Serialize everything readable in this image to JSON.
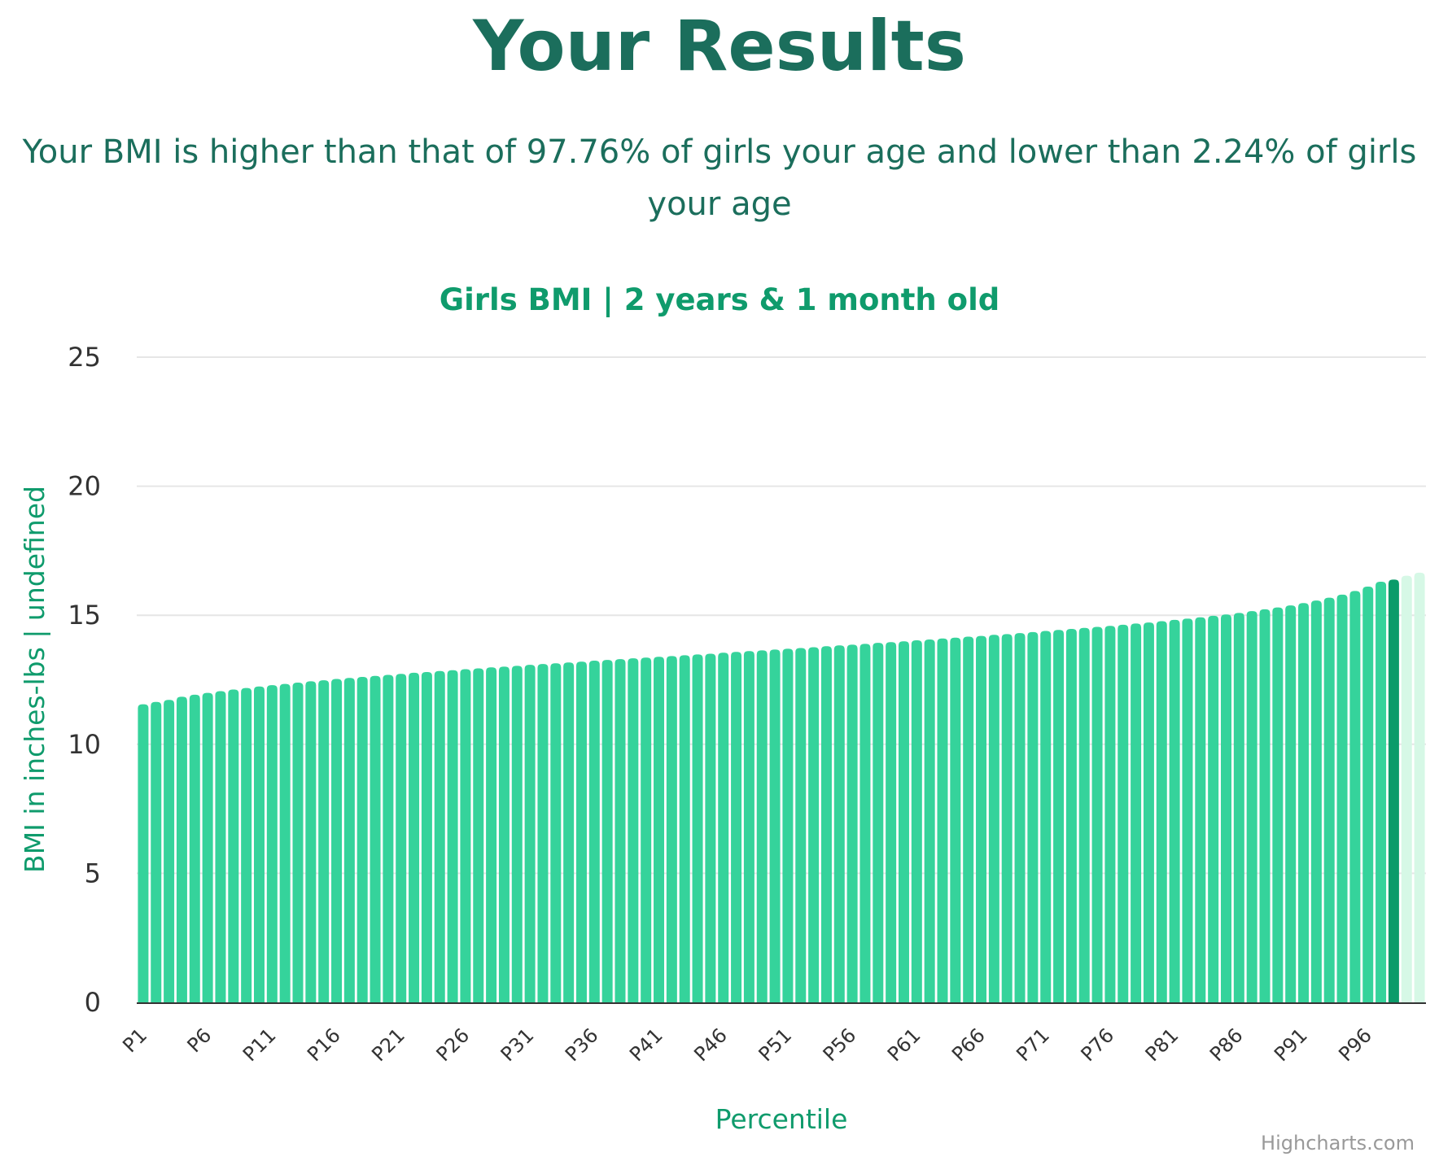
{
  "page": {
    "title": "Your Results",
    "summary": "Your BMI is higher than that of 97.76% of girls your age and lower than 2.24% of girls your age"
  },
  "chart_data": {
    "type": "bar",
    "title": "Girls BMI | 2 years & 1 month old",
    "xlabel": "Percentile",
    "ylabel": "BMI in inches-lbs | undefined",
    "ylim": [
      0,
      25
    ],
    "yticks": [
      0,
      5,
      10,
      15,
      20,
      25
    ],
    "grid": true,
    "legend": false,
    "x_tick_labels": [
      "P1",
      "P6",
      "P11",
      "P16",
      "P21",
      "P26",
      "P31",
      "P36",
      "P41",
      "P46",
      "P51",
      "P56",
      "P61",
      "P66",
      "P71",
      "P76",
      "P81",
      "P86",
      "P91",
      "P96"
    ],
    "categories": [
      "P1",
      "P2",
      "P3",
      "P4",
      "P5",
      "P6",
      "P7",
      "P8",
      "P9",
      "P10",
      "P11",
      "P12",
      "P13",
      "P14",
      "P15",
      "P16",
      "P17",
      "P18",
      "P19",
      "P20",
      "P21",
      "P22",
      "P23",
      "P24",
      "P25",
      "P26",
      "P27",
      "P28",
      "P29",
      "P30",
      "P31",
      "P32",
      "P33",
      "P34",
      "P35",
      "P36",
      "P37",
      "P38",
      "P39",
      "P40",
      "P41",
      "P42",
      "P43",
      "P44",
      "P45",
      "P46",
      "P47",
      "P48",
      "P49",
      "P50",
      "P51",
      "P52",
      "P53",
      "P54",
      "P55",
      "P56",
      "P57",
      "P58",
      "P59",
      "P60",
      "P61",
      "P62",
      "P63",
      "P64",
      "P65",
      "P66",
      "P67",
      "P68",
      "P69",
      "P70",
      "P71",
      "P72",
      "P73",
      "P74",
      "P75",
      "P76",
      "P77",
      "P78",
      "P79",
      "P80",
      "P81",
      "P82",
      "P83",
      "P84",
      "P85",
      "P86",
      "P87",
      "P88",
      "P89",
      "P90",
      "P91",
      "P92",
      "P93",
      "P94",
      "P95",
      "P96",
      "P97",
      "P98",
      "P99",
      "P100"
    ],
    "values": [
      11.55,
      11.64,
      11.72,
      11.84,
      11.92,
      11.99,
      12.06,
      12.12,
      12.18,
      12.24,
      12.29,
      12.34,
      12.39,
      12.44,
      12.48,
      12.53,
      12.57,
      12.61,
      12.65,
      12.69,
      12.73,
      12.77,
      12.8,
      12.84,
      12.87,
      12.91,
      12.94,
      12.98,
      13.01,
      13.04,
      13.08,
      13.11,
      13.14,
      13.17,
      13.2,
      13.24,
      13.27,
      13.3,
      13.33,
      13.36,
      13.39,
      13.42,
      13.45,
      13.48,
      13.51,
      13.55,
      13.58,
      13.61,
      13.64,
      13.67,
      13.7,
      13.73,
      13.76,
      13.8,
      13.83,
      13.86,
      13.89,
      13.93,
      13.96,
      13.99,
      14.03,
      14.06,
      14.1,
      14.13,
      14.17,
      14.2,
      14.24,
      14.27,
      14.31,
      14.35,
      14.39,
      14.43,
      14.47,
      14.51,
      14.55,
      14.59,
      14.63,
      14.68,
      14.72,
      14.77,
      14.82,
      14.87,
      14.92,
      14.98,
      15.03,
      15.09,
      15.16,
      15.23,
      15.3,
      15.38,
      15.47,
      15.57,
      15.68,
      15.8,
      15.94,
      16.11,
      16.3,
      16.38,
      16.53,
      16.65
    ],
    "highlight_index": 97,
    "highlight_category": "P98",
    "colors": {
      "bar": "#35d39b",
      "highlight": "#0b9b6a",
      "above": "#d6f8e6",
      "grid": "#e6e6e6",
      "axis": "#333333"
    },
    "credits": "Highcharts.com"
  }
}
